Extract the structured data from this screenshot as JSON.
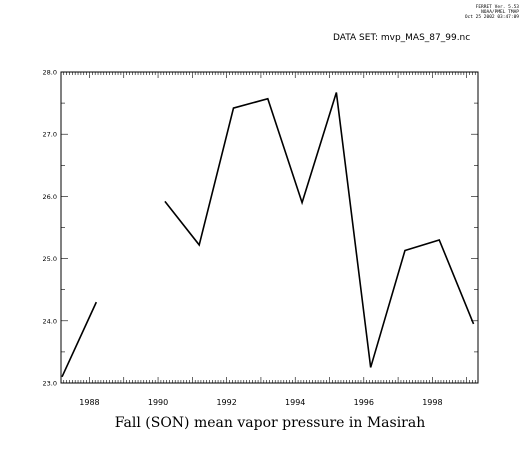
{
  "header": {
    "ferret_version": "FERRET Ver. 5.53",
    "org": "NOAA/PMEL TMAP",
    "timestamp": "Oct 25 2002 03:47:09",
    "dataset": "DATA SET: mvp_MAS_87_99.nc"
  },
  "chart_data": {
    "type": "line",
    "title": "Fall (SON) mean vapor pressure in Masirah",
    "xlabel": "",
    "ylabel": "",
    "xlim": [
      1987.17,
      1999.33
    ],
    "ylim": [
      23.0,
      28.0
    ],
    "x_tick_labels": [
      "1988",
      "1990",
      "1992",
      "1994",
      "1996",
      "1998"
    ],
    "x_ticks": [
      1988,
      1990,
      1992,
      1994,
      1996,
      1998
    ],
    "y_tick_labels": [
      "23.0",
      "24.0",
      "25.0",
      "26.0",
      "27.0",
      "28.0"
    ],
    "y_ticks": [
      23.0,
      24.0,
      25.0,
      26.0,
      27.0,
      28.0
    ],
    "grid": false,
    "series": [
      {
        "values": [
          {
            "x": 1987.2,
            "y": 23.1
          },
          {
            "x": 1988.2,
            "y": 24.3
          },
          {
            "x": 1989.2,
            "y": null
          },
          {
            "x": 1990.2,
            "y": 25.92
          },
          {
            "x": 1991.2,
            "y": 25.22
          },
          {
            "x": 1992.2,
            "y": 27.42
          },
          {
            "x": 1993.2,
            "y": 27.57
          },
          {
            "x": 1994.2,
            "y": 25.9
          },
          {
            "x": 1995.2,
            "y": 27.67
          },
          {
            "x": 1996.2,
            "y": 23.25
          },
          {
            "x": 1997.2,
            "y": 25.13
          },
          {
            "x": 1998.2,
            "y": 25.3
          },
          {
            "x": 1999.2,
            "y": 23.95
          }
        ]
      }
    ]
  }
}
